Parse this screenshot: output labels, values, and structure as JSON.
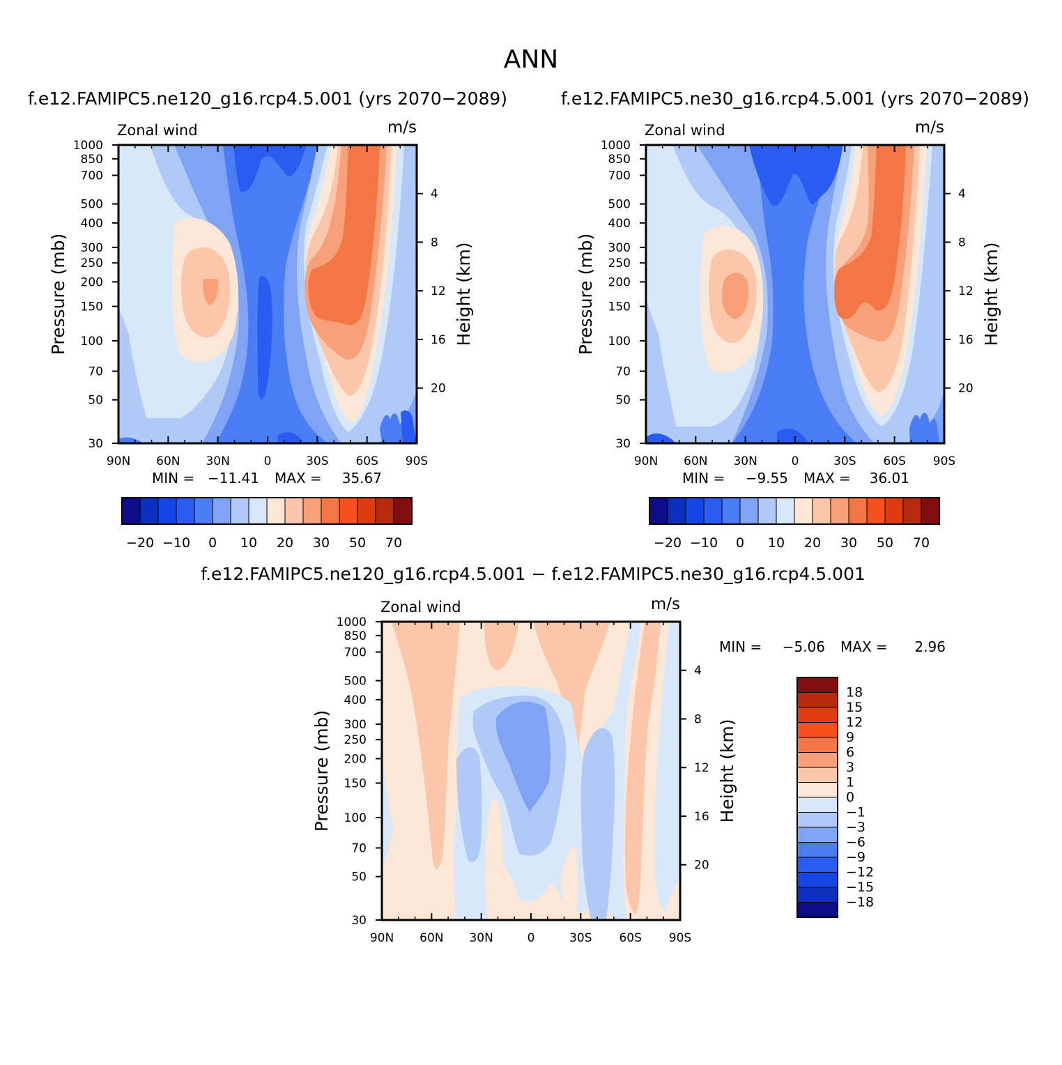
{
  "figure_title": "ANN",
  "chart_data": [
    {
      "type": "heatmap",
      "id": "left",
      "title": "f.e12.FAMIPC5.ne120_g16.rcp4.5.001 (yrs 2070−2089)",
      "variable": "Zonal wind",
      "units": "m/s",
      "ylabel": "Pressure (mb)",
      "right_label": "Height (km)",
      "x_ticks": [
        "90N",
        "60N",
        "30N",
        "0",
        "30S",
        "60S",
        "90S"
      ],
      "y_ticks": [
        "30",
        "50",
        "70",
        "100",
        "150",
        "200",
        "250",
        "300",
        "400",
        "500",
        "700",
        "850",
        "1000"
      ],
      "height_ticks": [
        "20",
        "16",
        "12",
        "8",
        "4"
      ],
      "xlim": [
        90,
        -90
      ],
      "ylim": [
        1000,
        30
      ],
      "min": "−11.41",
      "max": "35.67",
      "colorbar_labels": [
        "−20",
        "−10",
        "0",
        "10",
        "20",
        "30",
        "50",
        "70"
      ]
    },
    {
      "type": "heatmap",
      "id": "right",
      "title": "f.e12.FAMIPC5.ne30_g16.rcp4.5.001 (yrs 2070−2089)",
      "variable": "Zonal wind",
      "units": "m/s",
      "ylabel": "Pressure (mb)",
      "right_label": "Height (km)",
      "x_ticks": [
        "90N",
        "60N",
        "30N",
        "0",
        "30S",
        "60S",
        "90S"
      ],
      "y_ticks": [
        "30",
        "50",
        "70",
        "100",
        "150",
        "200",
        "250",
        "300",
        "400",
        "500",
        "700",
        "850",
        "1000"
      ],
      "height_ticks": [
        "20",
        "16",
        "12",
        "8",
        "4"
      ],
      "xlim": [
        90,
        -90
      ],
      "ylim": [
        1000,
        30
      ],
      "min": "−9.55",
      "max": "36.01",
      "colorbar_labels": [
        "−20",
        "−10",
        "0",
        "10",
        "20",
        "30",
        "50",
        "70"
      ]
    },
    {
      "type": "heatmap",
      "id": "diff",
      "title": "f.e12.FAMIPC5.ne120_g16.rcp4.5.001 − f.e12.FAMIPC5.ne30_g16.rcp4.5.001",
      "variable": "Zonal wind",
      "units": "m/s",
      "ylabel": "Pressure (mb)",
      "right_label": "Height (km)",
      "x_ticks": [
        "90N",
        "60N",
        "30N",
        "0",
        "30S",
        "60S",
        "90S"
      ],
      "y_ticks": [
        "30",
        "50",
        "70",
        "100",
        "150",
        "200",
        "250",
        "300",
        "400",
        "500",
        "700",
        "850",
        "1000"
      ],
      "height_ticks": [
        "20",
        "16",
        "12",
        "8",
        "4"
      ],
      "xlim": [
        90,
        -90
      ],
      "ylim": [
        1000,
        30
      ],
      "min": "−5.06",
      "max": "2.96",
      "colorbar_labels": [
        "18",
        "15",
        "12",
        "9",
        "6",
        "3",
        "1",
        "0",
        "−1",
        "−3",
        "−6",
        "−9",
        "−12",
        "−15",
        "−18"
      ]
    }
  ],
  "palette": {
    "full": [
      "#0d0d8c",
      "#0d2fbf",
      "#1446e6",
      "#2a5cf2",
      "#4a7df5",
      "#7fa3f5",
      "#b0c9f7",
      "#d8e8fa",
      "#fde8d7",
      "#fcc6ab",
      "#f7a07a",
      "#f57645",
      "#f5501e",
      "#df3a11",
      "#b82a0e",
      "#820e0e"
    ],
    "diff": [
      "#820e0e",
      "#b82a0e",
      "#df3a11",
      "#f5501e",
      "#f57645",
      "#f7a07a",
      "#fcc6ab",
      "#fde8d7",
      "#d8e8fa",
      "#b0c9f7",
      "#7fa3f5",
      "#4a7df5",
      "#2a5cf2",
      "#1446e6",
      "#0d2fbf",
      "#0d0d8c"
    ]
  }
}
